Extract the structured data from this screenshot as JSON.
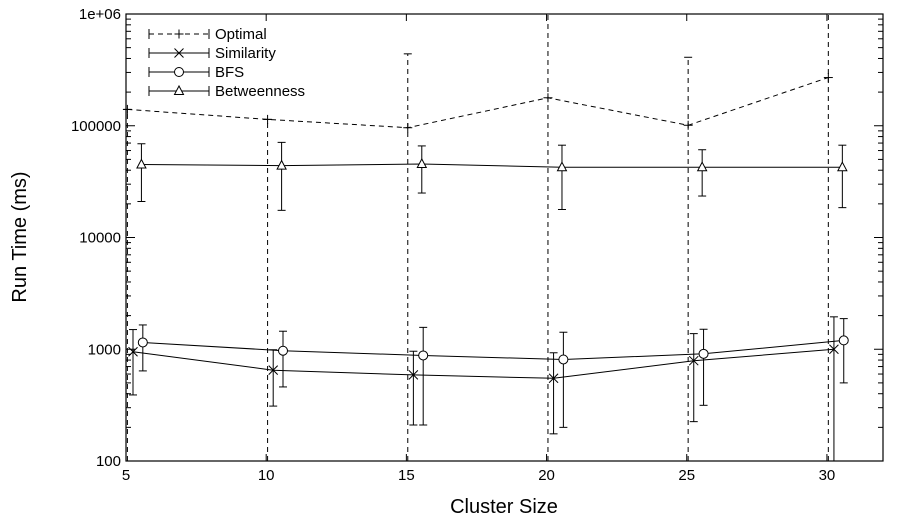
{
  "chart_data": {
    "type": "line",
    "title": "",
    "xlabel": "Cluster Size",
    "ylabel": "Run Time (ms)",
    "xlim": [
      5,
      32
    ],
    "ylim": [
      100,
      1000000
    ],
    "y_scale": "log",
    "x_ticks": [
      5,
      10,
      15,
      20,
      25,
      30
    ],
    "x_tick_labels": [
      "5",
      "10",
      "15",
      "20",
      "25",
      "30"
    ],
    "y_ticks": [
      100,
      1000,
      10000,
      100000,
      1000000
    ],
    "y_tick_labels": [
      "100",
      "1000",
      "10000",
      "100000",
      "1e+06"
    ],
    "grid": false,
    "legend_position": "top-left",
    "series": [
      {
        "name": "Optimal",
        "dash": "dashed",
        "marker": "plus",
        "points": [
          {
            "x": 5.05,
            "y": 140000,
            "lo": 100,
            "hi": 140000
          },
          {
            "x": 10.05,
            "y": 114000,
            "lo": 100,
            "hi": 114000
          },
          {
            "x": 15.05,
            "y": 96000,
            "lo": 100,
            "hi": 440000
          },
          {
            "x": 20.05,
            "y": 178000,
            "lo": 100,
            "hi": 1000000
          },
          {
            "x": 25.05,
            "y": 101000,
            "lo": 100,
            "hi": 410000
          },
          {
            "x": 30.05,
            "y": 270000,
            "lo": 100,
            "hi": 1000000
          }
        ]
      },
      {
        "name": "Similarity",
        "dash": "solid",
        "marker": "cross",
        "points": [
          {
            "x": 5.25,
            "y": 950,
            "lo": 390,
            "hi": 1500
          },
          {
            "x": 10.25,
            "y": 650,
            "lo": 310,
            "hi": 990
          },
          {
            "x": 15.25,
            "y": 590,
            "lo": 210,
            "hi": 960
          },
          {
            "x": 20.25,
            "y": 550,
            "lo": 175,
            "hi": 930
          },
          {
            "x": 25.25,
            "y": 790,
            "lo": 225,
            "hi": 1380
          },
          {
            "x": 30.25,
            "y": 1000,
            "lo": 100,
            "hi": 1950
          }
        ]
      },
      {
        "name": "BFS",
        "dash": "solid",
        "marker": "circle",
        "points": [
          {
            "x": 5.6,
            "y": 1150,
            "lo": 640,
            "hi": 1650
          },
          {
            "x": 10.6,
            "y": 970,
            "lo": 460,
            "hi": 1450
          },
          {
            "x": 15.6,
            "y": 880,
            "lo": 210,
            "hi": 1570
          },
          {
            "x": 20.6,
            "y": 810,
            "lo": 200,
            "hi": 1420
          },
          {
            "x": 25.6,
            "y": 910,
            "lo": 315,
            "hi": 1510
          },
          {
            "x": 30.6,
            "y": 1200,
            "lo": 500,
            "hi": 1880
          }
        ]
      },
      {
        "name": "Betweenness",
        "dash": "solid",
        "marker": "triangle",
        "points": [
          {
            "x": 5.55,
            "y": 45000,
            "lo": 21000,
            "hi": 69000
          },
          {
            "x": 10.55,
            "y": 44000,
            "lo": 17500,
            "hi": 71000
          },
          {
            "x": 15.55,
            "y": 45500,
            "lo": 25000,
            "hi": 66000
          },
          {
            "x": 20.55,
            "y": 42500,
            "lo": 17800,
            "hi": 67000
          },
          {
            "x": 25.55,
            "y": 42500,
            "lo": 23500,
            "hi": 61000
          },
          {
            "x": 30.55,
            "y": 42500,
            "lo": 18500,
            "hi": 67000
          }
        ]
      }
    ]
  }
}
